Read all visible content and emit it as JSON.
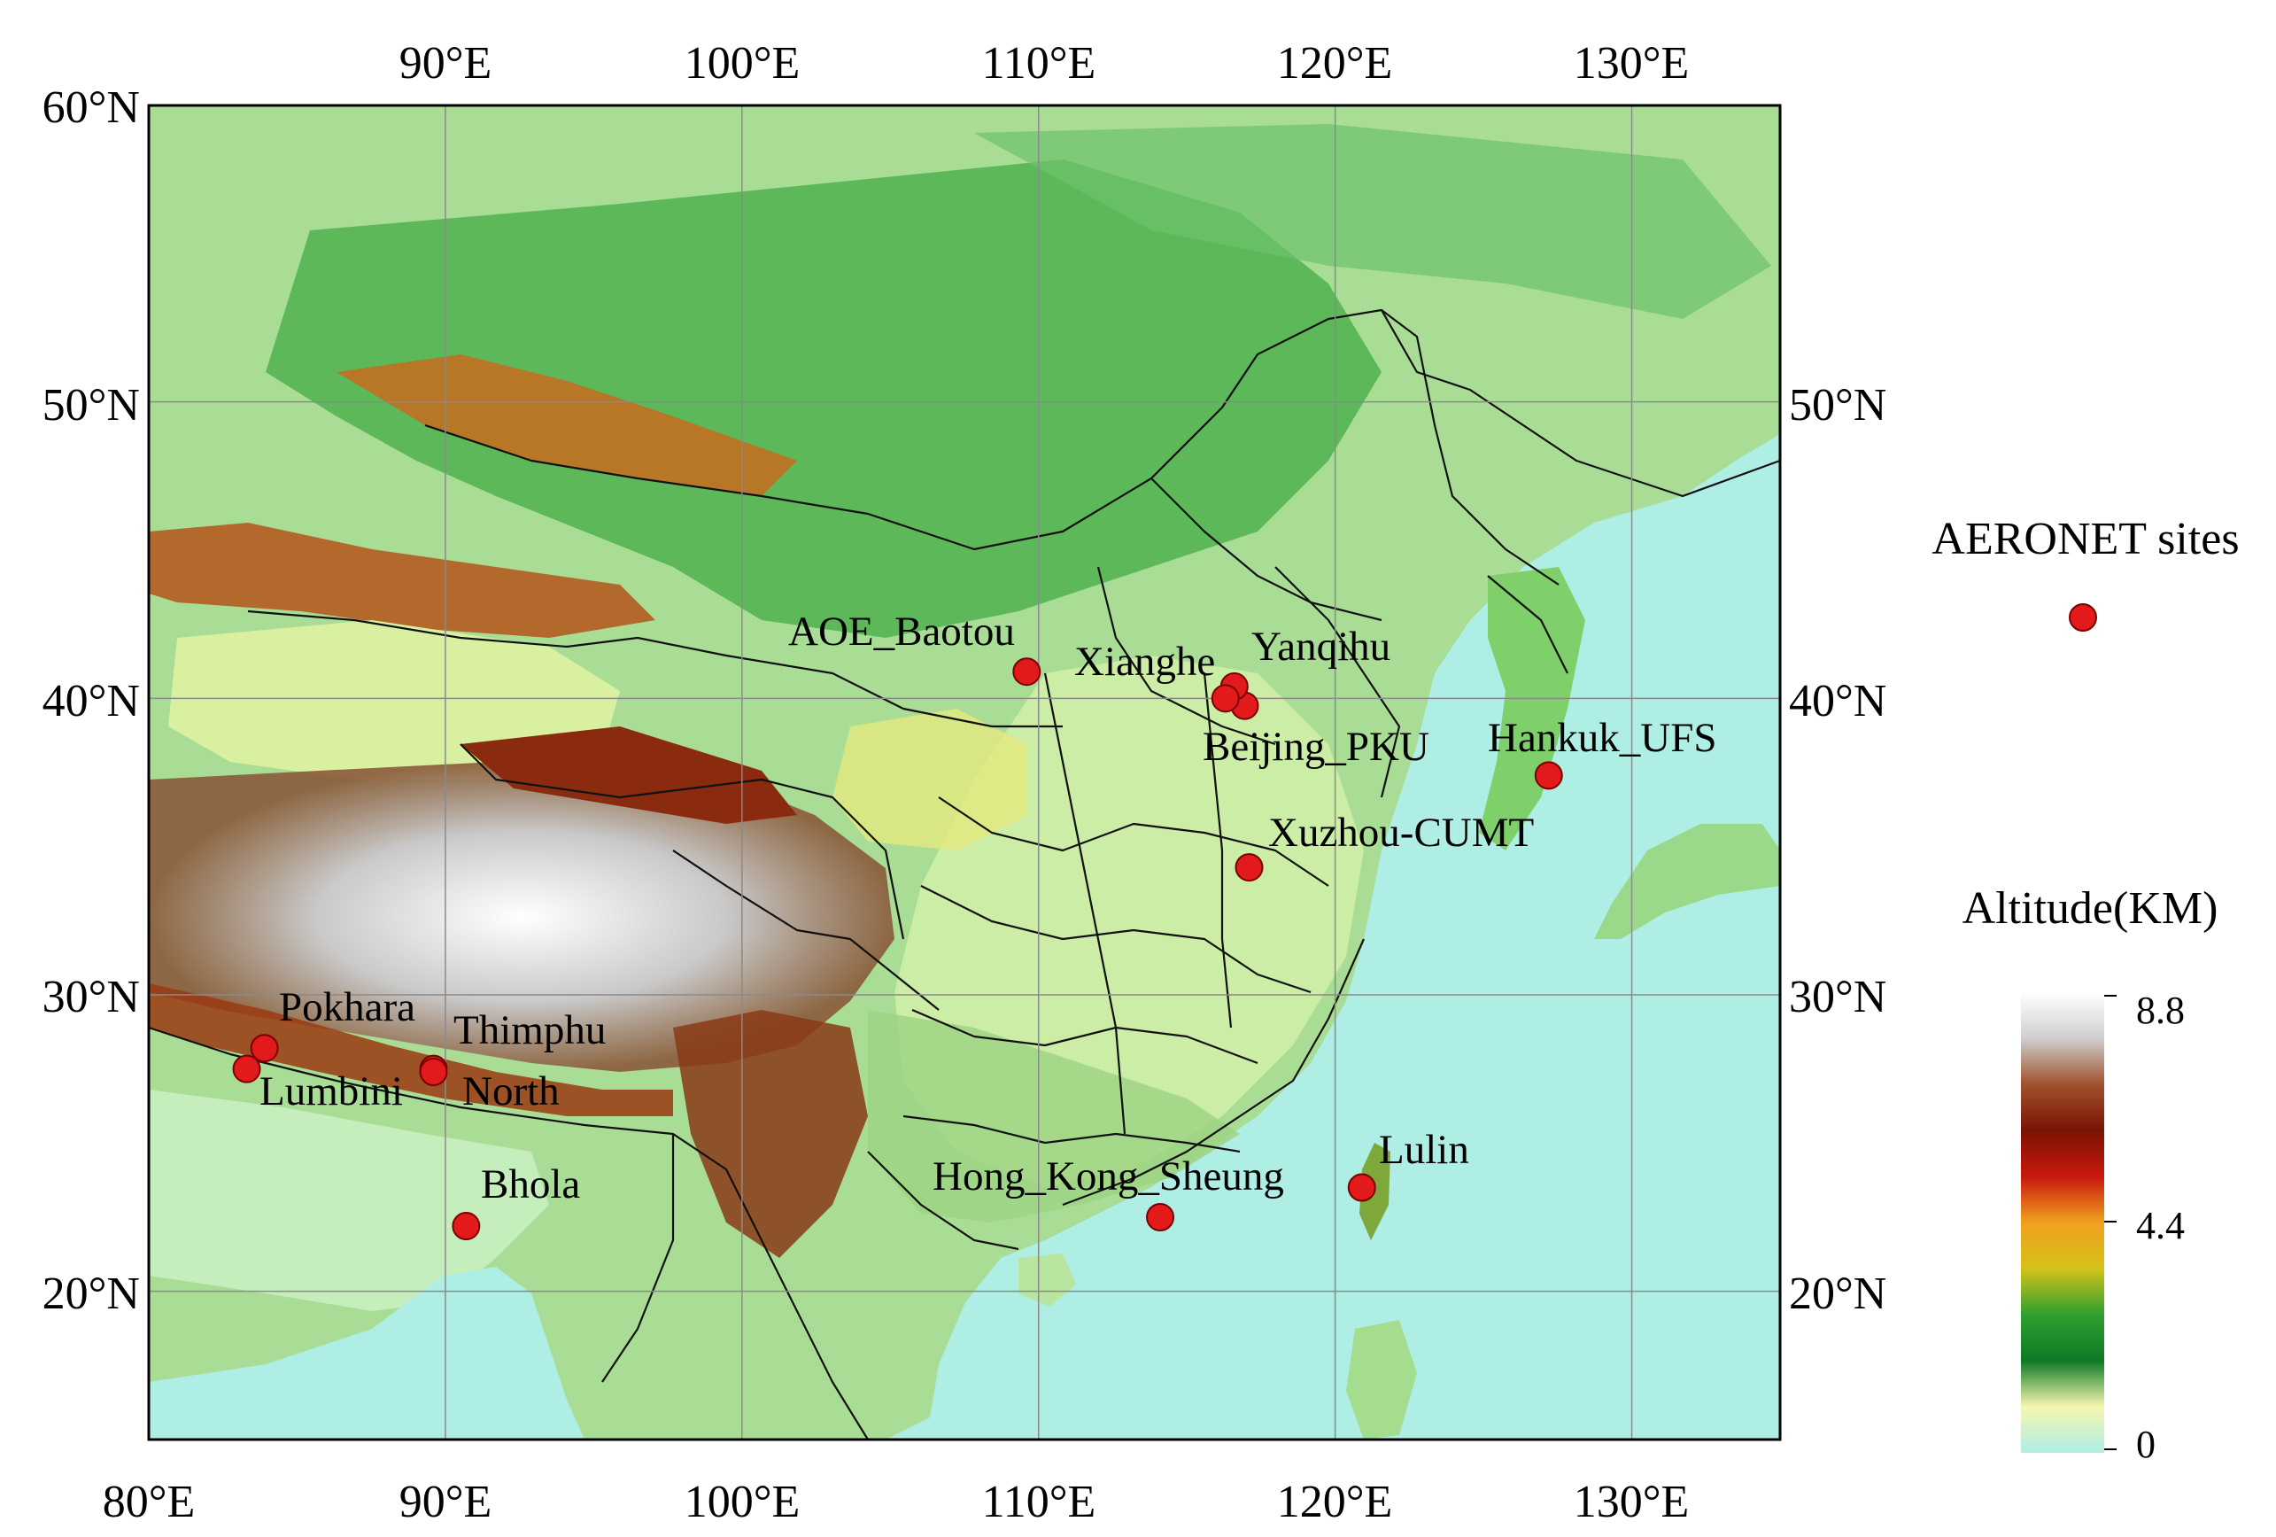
{
  "map": {
    "extent": {
      "lon": [
        80,
        135
      ],
      "lat": [
        15,
        60
      ]
    },
    "bottom_lon_labels": [
      "80°E",
      "90°E",
      "100°E",
      "110°E",
      "120°E",
      "130°E"
    ],
    "top_lon_labels": [
      "90°E",
      "100°E",
      "110°E",
      "120°E",
      "130°E"
    ],
    "left_lat_labels": [
      "60°N",
      "50°N",
      "40°N",
      "30°N",
      "20°N"
    ],
    "right_lat_labels": [
      "50°N",
      "40°N",
      "30°N",
      "20°N"
    ],
    "ocean_color": "#aeeee4",
    "grid_color": "#8a8a8a"
  },
  "sites": [
    {
      "name": "AOE_Baotou",
      "lon": 109.6,
      "lat": 40.9
    },
    {
      "name": "Xianghe",
      "lon": 116.95,
      "lat": 39.75
    },
    {
      "name": "Yanqihu",
      "lon": 116.6,
      "lat": 40.4
    },
    {
      "name": "Beijing_PKU",
      "lon": 116.3,
      "lat": 40.0
    },
    {
      "name": "Hankuk_UFS",
      "lon": 127.2,
      "lat": 37.4
    },
    {
      "name": "Xuzhou-CUMT",
      "lon": 117.1,
      "lat": 34.3
    },
    {
      "name": "Pokhara",
      "lon": 83.9,
      "lat": 28.2
    },
    {
      "name": "Thimphu",
      "lon": 89.6,
      "lat": 27.5
    },
    {
      "name": "Lumbini",
      "lon": 83.3,
      "lat": 27.5
    },
    {
      "name": "North",
      "lon": 89.6,
      "lat": 27.4
    },
    {
      "name": "Bhola",
      "lon": 90.7,
      "lat": 22.2
    },
    {
      "name": "Hong_Kong_Sheung",
      "lon": 114.1,
      "lat": 22.5
    },
    {
      "name": "Lulin",
      "lon": 120.9,
      "lat": 23.5
    }
  ],
  "legend": {
    "sites_title": "AERONET sites",
    "site_color": "#e31a1c",
    "colorbar_title": "Altitude(KM)",
    "colorbar_labels": [
      "8.8",
      "4.4",
      "0"
    ],
    "colorbar_colors": [
      "#ffffff",
      "#cfcfcf",
      "#a0522d",
      "#7a1405",
      "#c8180d",
      "#f0a020",
      "#d4c21a",
      "#2f9f2f",
      "#0f7a25",
      "#f6f6b0",
      "#aeeee4"
    ]
  }
}
